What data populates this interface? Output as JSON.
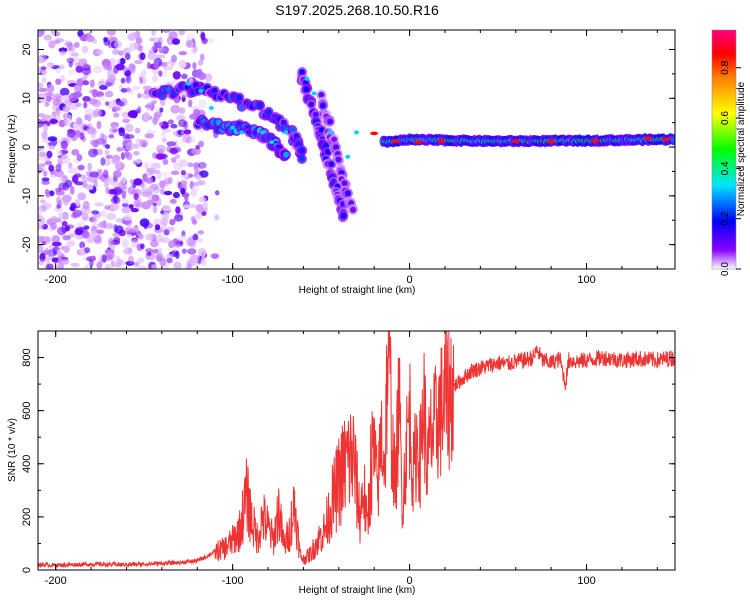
{
  "title": "S197.2025.268.10.50.R16",
  "chart_data": [
    {
      "type": "heatmap",
      "name": "spectrogram",
      "xlabel": "Height of straight line (km)",
      "ylabel": "Frequency (Hz)",
      "xlim": [
        -210,
        150
      ],
      "ylim": [
        -25,
        24
      ],
      "xticks": [
        -200,
        -100,
        0,
        100
      ],
      "xtick_labels": [
        "-200",
        "-100",
        "0",
        "100"
      ],
      "yticks": [
        -20,
        -10,
        0,
        10,
        20
      ],
      "ytick_labels": [
        "-20",
        "-10",
        "0",
        "10",
        "20"
      ],
      "colorbar": {
        "label": "Normalized spectral amplitude",
        "range": [
          0,
          0.95
        ],
        "ticks": [
          0,
          0.2,
          0.4,
          0.6,
          0.8
        ],
        "tick_labels": [
          "0.0",
          "0.2",
          "0.4",
          "0.6",
          "0.8"
        ],
        "colors": [
          "#ffffff",
          "#8a00ff",
          "#0000ff",
          "#00e5ff",
          "#00ff00",
          "#ffff00",
          "#ff8000",
          "#ff0000",
          "#ff0080"
        ]
      },
      "features": [
        {
          "name": "scatter noise",
          "x_range": [
            -210,
            -115
          ],
          "freq_range": [
            -25,
            24
          ],
          "amplitude": 0.05
        },
        {
          "name": "upper descending track",
          "points": [
            [
              -145,
              11
            ],
            [
              -120,
              12
            ],
            [
              -100,
              10
            ],
            [
              -80,
              7
            ],
            [
              -65,
              2
            ],
            [
              -60,
              -2
            ]
          ],
          "amplitude": 0.25
        },
        {
          "name": "lower descending track",
          "points": [
            [
              -120,
              5
            ],
            [
              -100,
              4
            ],
            [
              -85,
              3
            ],
            [
              -75,
              0
            ],
            [
              -70,
              -2
            ]
          ],
          "amplitude": 0.3
        },
        {
          "name": "steep track A",
          "points": [
            [
              -62,
              15
            ],
            [
              -55,
              8
            ],
            [
              -48,
              0
            ],
            [
              -42,
              -8
            ],
            [
              -36,
              -15
            ]
          ],
          "amplitude": 0.2
        },
        {
          "name": "steep track B",
          "points": [
            [
              -50,
              10
            ],
            [
              -44,
              2
            ],
            [
              -38,
              -6
            ],
            [
              -32,
              -14
            ]
          ],
          "amplitude": 0.15
        },
        {
          "name": "main carrier",
          "points": [
            [
              -15,
              1
            ],
            [
              0,
              1.5
            ],
            [
              50,
              1.2
            ],
            [
              100,
              1.3
            ],
            [
              150,
              1.6
            ]
          ],
          "amplitude": 0.95
        }
      ]
    },
    {
      "type": "line",
      "name": "snr",
      "xlabel": "Height of straight line (km)",
      "ylabel": "SNR (10 * v/v)",
      "xlim": [
        -210,
        150
      ],
      "ylim": [
        0,
        900
      ],
      "xticks": [
        -200,
        -100,
        0,
        100
      ],
      "xtick_labels": [
        "-200",
        "-100",
        "0",
        "100"
      ],
      "yticks": [
        0,
        200,
        400,
        600,
        800
      ],
      "ytick_labels": [
        "0",
        "200",
        "400",
        "600",
        "800"
      ],
      "color": "#ee3333",
      "series": [
        {
          "name": "SNR",
          "x": [
            -210,
            -200,
            -180,
            -160,
            -140,
            -130,
            -120,
            -115,
            -110,
            -105,
            -100,
            -96,
            -92,
            -89,
            -86,
            -83,
            -80,
            -77,
            -74,
            -71,
            -68,
            -65,
            -62,
            -60,
            -56,
            -52,
            -48,
            -44,
            -40,
            -36,
            -32,
            -28,
            -26,
            -24,
            -22,
            -20,
            -18,
            -16,
            -14,
            -12,
            -10,
            -8,
            -6,
            -4,
            -2,
            0,
            2,
            4,
            6,
            8,
            10,
            12,
            14,
            16,
            18,
            20,
            25,
            30,
            35,
            40,
            45,
            50,
            55,
            60,
            65,
            70,
            72,
            75,
            80,
            85,
            88,
            90,
            95,
            100,
            110,
            120,
            130,
            140,
            150
          ],
          "y": [
            20,
            18,
            22,
            20,
            25,
            28,
            35,
            50,
            70,
            80,
            110,
            150,
            280,
            180,
            120,
            200,
            160,
            110,
            230,
            90,
            140,
            250,
            60,
            40,
            60,
            110,
            150,
            250,
            330,
            400,
            430,
            200,
            320,
            150,
            380,
            450,
            280,
            520,
            400,
            900,
            500,
            300,
            650,
            240,
            450,
            600,
            350,
            480,
            420,
            640,
            380,
            500,
            520,
            580,
            600,
            650,
            690,
            720,
            750,
            760,
            770,
            780,
            775,
            785,
            790,
            800,
            830,
            790,
            780,
            795,
            700,
            790,
            785,
            790,
            800,
            790,
            795,
            790,
            800
          ]
        }
      ]
    }
  ]
}
